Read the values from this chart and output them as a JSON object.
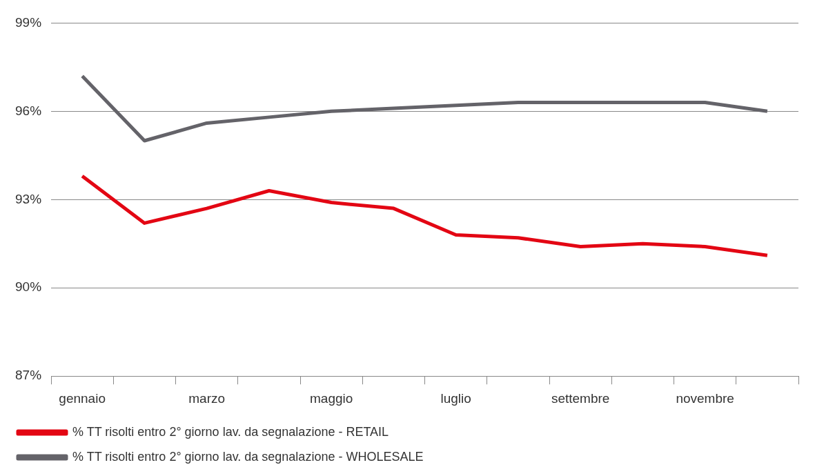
{
  "chart_data": {
    "type": "line",
    "categories": [
      "gennaio",
      null,
      "marzo",
      null,
      "maggio",
      null,
      "luglio",
      null,
      "settembre",
      null,
      "novembre",
      null
    ],
    "series": [
      {
        "name": "% TT risolti entro 2° giorno lav. da segnalazione - RETAIL",
        "color": "#e30613",
        "values": [
          93.8,
          92.2,
          92.7,
          93.3,
          92.9,
          92.7,
          91.8,
          91.7,
          91.4,
          91.5,
          91.4,
          91.1
        ]
      },
      {
        "name": "% TT risolti entro 2° giorno lav. da segnalazione - WHOLESALE",
        "color": "#646369",
        "values": [
          97.2,
          95.0,
          95.6,
          95.8,
          96.0,
          96.1,
          96.2,
          96.3,
          96.3,
          96.3,
          96.3,
          96.0
        ]
      }
    ],
    "ylim": [
      87,
      99
    ],
    "yticks": [
      {
        "value": 87,
        "label": "87%"
      },
      {
        "value": 90,
        "label": "90%"
      },
      {
        "value": 93,
        "label": "93%"
      },
      {
        "value": 96,
        "label": "96%"
      },
      {
        "value": 99,
        "label": "99%"
      }
    ],
    "grid": "y",
    "legend": "bottom",
    "marker": "none",
    "line_style": "solid"
  }
}
